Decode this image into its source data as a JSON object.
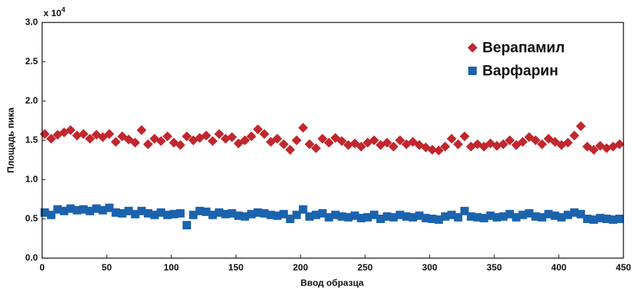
{
  "chart_data": {
    "type": "scatter",
    "y_multiplier": "x 10",
    "y_multiplier_exponent": "4",
    "xlabel": "Ввод образца",
    "ylabel": "Площадь пика",
    "xlim": [
      0,
      450
    ],
    "ylim": [
      0,
      3
    ],
    "xticks": [
      0,
      50,
      100,
      150,
      200,
      250,
      300,
      350,
      400,
      450
    ],
    "yticks": [
      {
        "value": 0,
        "label": "0.0"
      },
      0.5,
      {
        "value": 1,
        "label": "1.0"
      },
      1.5,
      {
        "value": 2,
        "label": "2.0"
      },
      2.5,
      {
        "value": 3,
        "label": "3.0"
      }
    ],
    "legend": "upper right",
    "x": [
      2,
      7,
      12,
      17,
      22,
      27,
      32,
      37,
      42,
      47,
      52,
      57,
      62,
      67,
      72,
      77,
      82,
      87,
      92,
      97,
      102,
      107,
      112,
      117,
      122,
      127,
      132,
      137,
      142,
      147,
      152,
      157,
      162,
      167,
      172,
      177,
      182,
      187,
      192,
      197,
      202,
      207,
      212,
      217,
      222,
      227,
      232,
      237,
      242,
      247,
      252,
      257,
      262,
      267,
      272,
      277,
      282,
      287,
      292,
      297,
      302,
      307,
      312,
      317,
      322,
      327,
      332,
      337,
      342,
      347,
      352,
      357,
      362,
      367,
      372,
      377,
      382,
      387,
      392,
      397,
      402,
      407,
      412,
      417,
      422,
      427,
      432,
      437,
      442,
      447
    ],
    "series": [
      {
        "name": "Верапамил",
        "color": "#c1272d",
        "marker": "diamond",
        "values": [
          1.58,
          1.52,
          1.57,
          1.6,
          1.63,
          1.56,
          1.58,
          1.52,
          1.57,
          1.54,
          1.58,
          1.48,
          1.55,
          1.51,
          1.47,
          1.63,
          1.45,
          1.52,
          1.49,
          1.55,
          1.47,
          1.44,
          1.55,
          1.5,
          1.53,
          1.56,
          1.49,
          1.58,
          1.52,
          1.54,
          1.46,
          1.5,
          1.55,
          1.64,
          1.58,
          1.48,
          1.52,
          1.45,
          1.38,
          1.5,
          1.66,
          1.45,
          1.4,
          1.52,
          1.47,
          1.53,
          1.49,
          1.44,
          1.46,
          1.42,
          1.47,
          1.5,
          1.44,
          1.47,
          1.42,
          1.5,
          1.45,
          1.48,
          1.44,
          1.41,
          1.38,
          1.37,
          1.42,
          1.52,
          1.45,
          1.55,
          1.42,
          1.45,
          1.42,
          1.46,
          1.43,
          1.45,
          1.5,
          1.44,
          1.48,
          1.54,
          1.5,
          1.45,
          1.52,
          1.48,
          1.44,
          1.47,
          1.56,
          1.68,
          1.42,
          1.38,
          1.43,
          1.4,
          1.42,
          1.45
        ]
      },
      {
        "name": "Варфарин",
        "color": "#1b63ad",
        "marker": "square",
        "values": [
          0.58,
          0.55,
          0.62,
          0.6,
          0.63,
          0.61,
          0.62,
          0.6,
          0.63,
          0.61,
          0.64,
          0.58,
          0.57,
          0.6,
          0.56,
          0.6,
          0.57,
          0.55,
          0.58,
          0.55,
          0.56,
          0.57,
          0.42,
          0.55,
          0.6,
          0.59,
          0.55,
          0.58,
          0.56,
          0.57,
          0.54,
          0.53,
          0.56,
          0.58,
          0.57,
          0.55,
          0.54,
          0.56,
          0.5,
          0.55,
          0.62,
          0.53,
          0.55,
          0.57,
          0.52,
          0.55,
          0.53,
          0.52,
          0.54,
          0.51,
          0.52,
          0.55,
          0.5,
          0.53,
          0.52,
          0.55,
          0.53,
          0.52,
          0.54,
          0.51,
          0.5,
          0.49,
          0.53,
          0.55,
          0.52,
          0.6,
          0.53,
          0.52,
          0.51,
          0.54,
          0.52,
          0.53,
          0.56,
          0.52,
          0.55,
          0.57,
          0.53,
          0.52,
          0.56,
          0.54,
          0.52,
          0.55,
          0.58,
          0.56,
          0.5,
          0.49,
          0.51,
          0.5,
          0.49,
          0.5
        ]
      }
    ]
  }
}
